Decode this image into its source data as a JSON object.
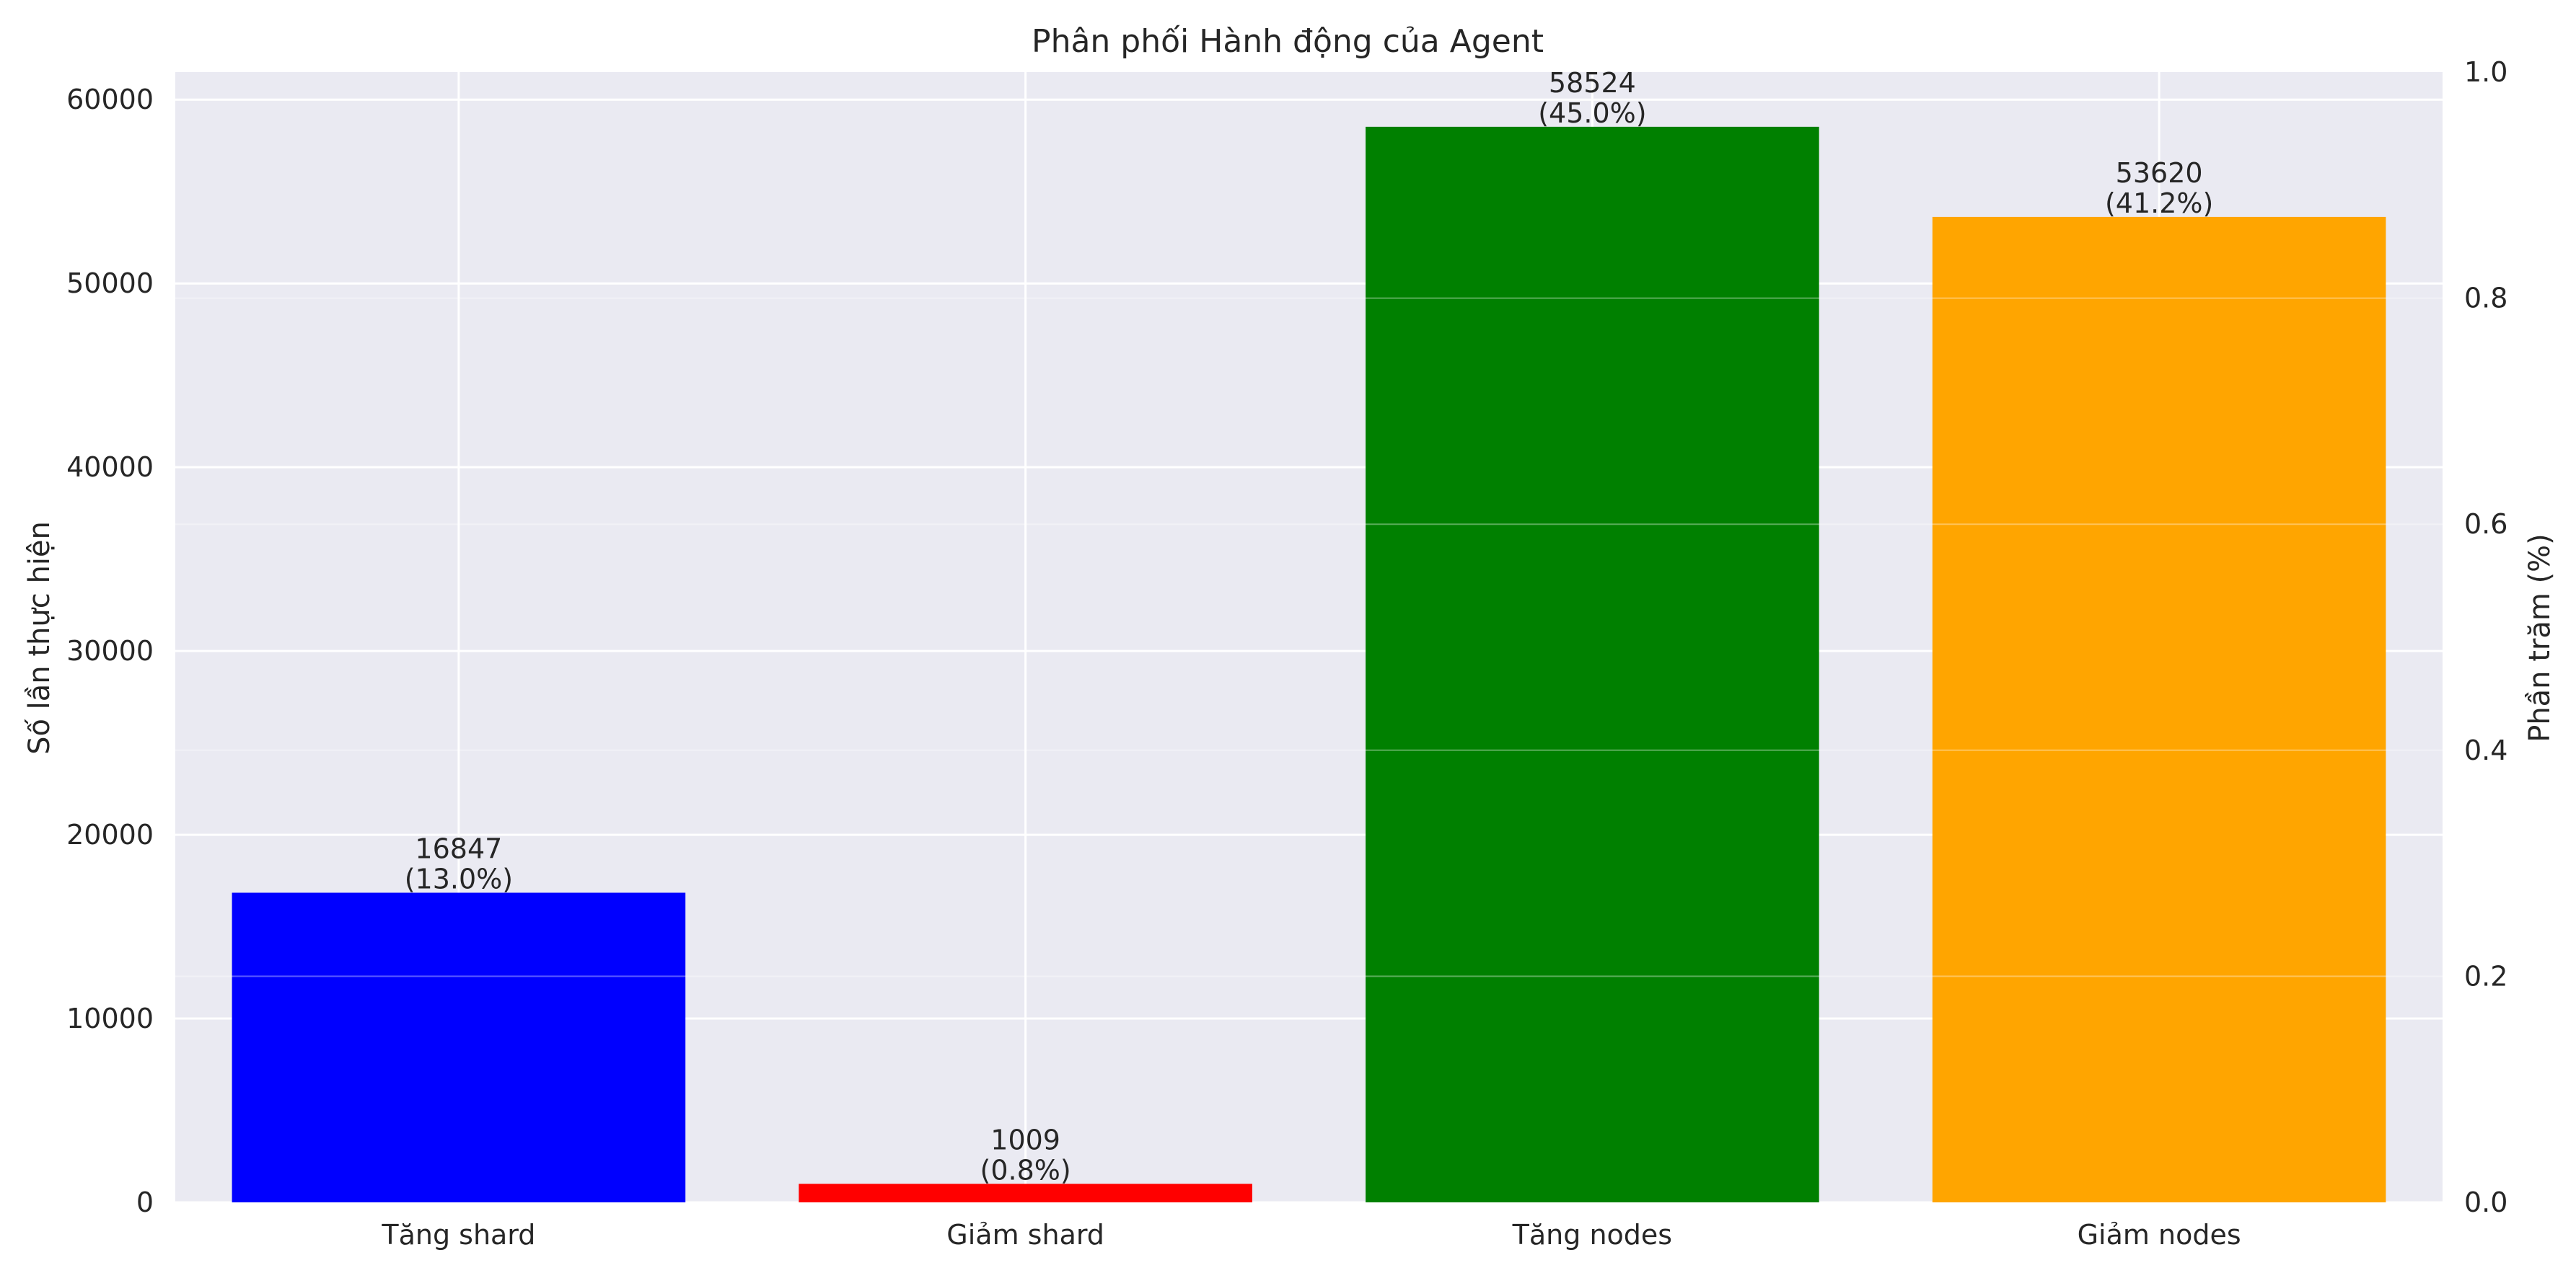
{
  "chart_data": {
    "type": "bar",
    "title": "Phân phối Hành động của Agent",
    "xlabel": "",
    "ylabel": "Số lần thực hiện",
    "y2label": "Phần trăm (%)",
    "categories": [
      "Tăng shard",
      "Giảm shard",
      "Tăng nodes",
      "Giảm nodes"
    ],
    "values": [
      16847,
      1009,
      58524,
      53620
    ],
    "value_labels": [
      "16847",
      "1009",
      "58524",
      "53620"
    ],
    "percent_labels": [
      "(13.0%)",
      "(0.8%)",
      "(45.0%)",
      "(41.2%)"
    ],
    "colors": [
      "#0000ff",
      "#ff0000",
      "#008000",
      "#ffa500"
    ],
    "ylim": [
      0,
      61500
    ],
    "yticks": [
      0,
      10000,
      20000,
      30000,
      40000,
      50000,
      60000
    ],
    "ytick_labels": [
      "0",
      "10000",
      "20000",
      "30000",
      "40000",
      "50000",
      "60000"
    ],
    "y2lim": [
      0,
      1.0
    ],
    "y2ticks": [
      0.0,
      0.2,
      0.4,
      0.6,
      0.8,
      1.0
    ],
    "y2tick_labels": [
      "0.0",
      "0.2",
      "0.4",
      "0.6",
      "0.8",
      "1.0"
    ],
    "grid": true,
    "style": "seaborn-darkgrid"
  }
}
